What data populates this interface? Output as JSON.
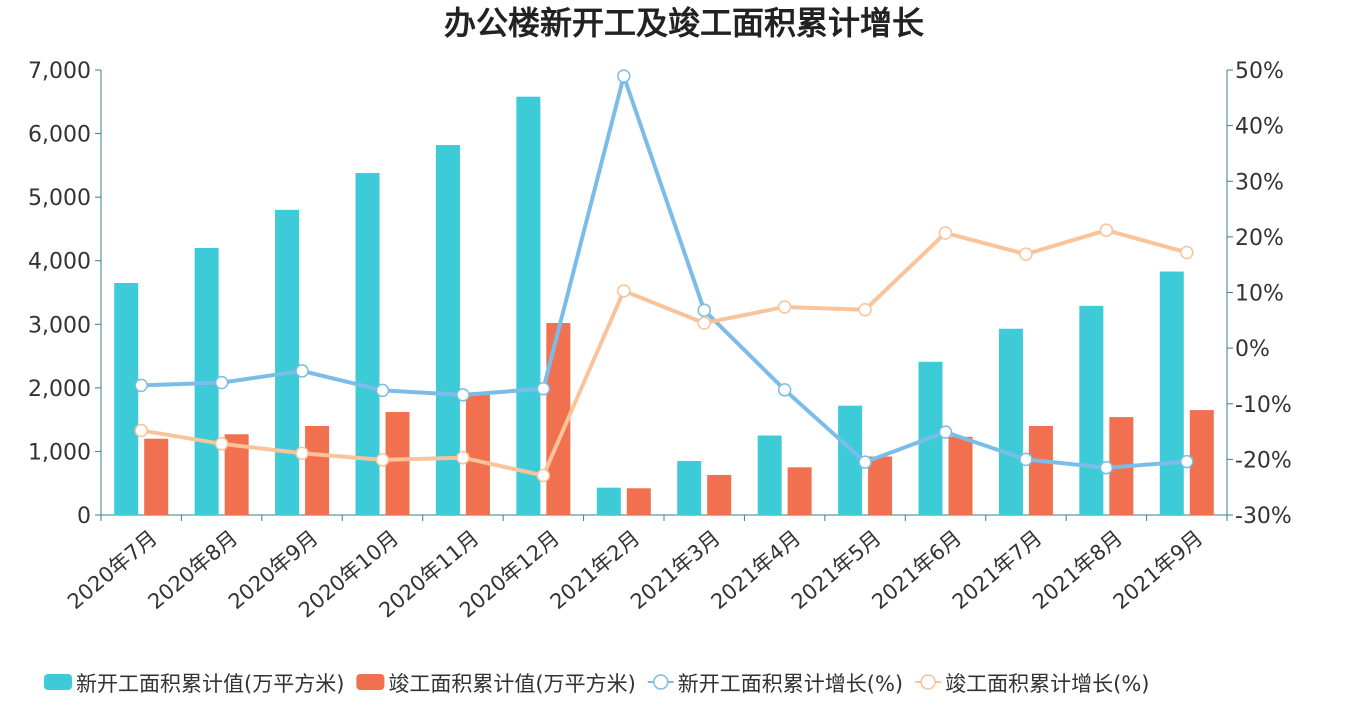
{
  "chart_data": {
    "type": "bar",
    "title": "办公楼新开工及竣工面积累计增长",
    "categories": [
      "2020年7月",
      "2020年8月",
      "2020年9月",
      "2020年10月",
      "2020年11月",
      "2020年12月",
      "2021年2月",
      "2021年3月",
      "2021年4月",
      "2021年5月",
      "2021年6月",
      "2021年7月",
      "2021年8月",
      "2021年9月"
    ],
    "series": [
      {
        "name": "新开工面积累计值(万平方米)",
        "type": "bar",
        "axis": "left",
        "color": "#3ecbd8",
        "values": [
          3650,
          4200,
          4800,
          5380,
          5820,
          6580,
          430,
          850,
          1250,
          1720,
          2410,
          2930,
          3290,
          3830
        ]
      },
      {
        "name": "竣工面积累计值(万平方米)",
        "type": "bar",
        "axis": "left",
        "color": "#f07050",
        "values": [
          1200,
          1270,
          1400,
          1620,
          1890,
          3020,
          420,
          630,
          750,
          920,
          1230,
          1400,
          1540,
          1650
        ]
      },
      {
        "name": "新开工面积累计增长(%)",
        "type": "line",
        "axis": "right",
        "color": "#7bbde8",
        "values": [
          -6.7,
          -6.2,
          -4.1,
          -7.6,
          -8.4,
          -7.3,
          48.9,
          6.8,
          -7.5,
          -20.5,
          -15.1,
          -20.0,
          -21.5,
          -20.4
        ]
      },
      {
        "name": "竣工面积累计增长(%)",
        "type": "line",
        "axis": "right",
        "color": "#f9c49a",
        "values": [
          -14.8,
          -17.2,
          -18.9,
          -20.1,
          -19.7,
          -22.9,
          10.3,
          4.5,
          7.4,
          6.9,
          20.7,
          16.9,
          21.2,
          17.2
        ]
      }
    ],
    "y_left": {
      "min": 0,
      "max": 7000,
      "ticks": [
        "0",
        "1,000",
        "2,000",
        "3,000",
        "4,000",
        "5,000",
        "6,000",
        "7,000"
      ]
    },
    "y_right": {
      "min": -30,
      "max": 50,
      "ticks": [
        "-30%",
        "-20%",
        "-10%",
        "0%",
        "10%",
        "20%",
        "30%",
        "40%",
        "50%"
      ]
    },
    "grid": false,
    "legend_position": "bottom"
  }
}
